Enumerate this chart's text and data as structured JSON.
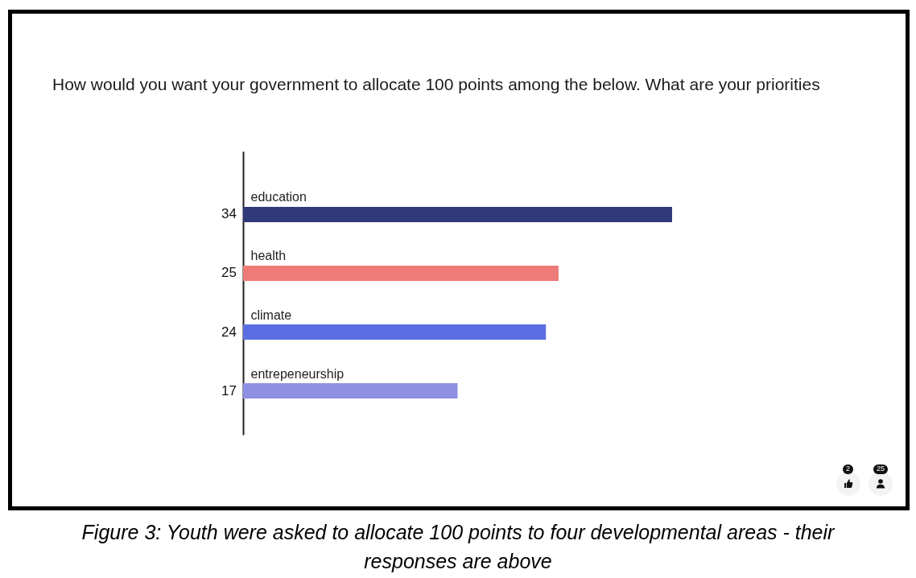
{
  "chart_data": {
    "type": "bar",
    "orientation": "horizontal",
    "title": "How would you want your government to allocate 100 points among the below. What are your priorities",
    "categories": [
      "education",
      "health",
      "climate",
      "entrepeneurship"
    ],
    "values": [
      34,
      25,
      24,
      17
    ],
    "colors": [
      "#313a79",
      "#ee7b77",
      "#5b6ee1",
      "#8e90e3"
    ],
    "data_labels": true,
    "tick_labels": "y",
    "annotations": [
      "2",
      "25",
      "Figure 3: Youth were asked to allocate 100 points to four developmental areas - their responses are above"
    ]
  }
}
